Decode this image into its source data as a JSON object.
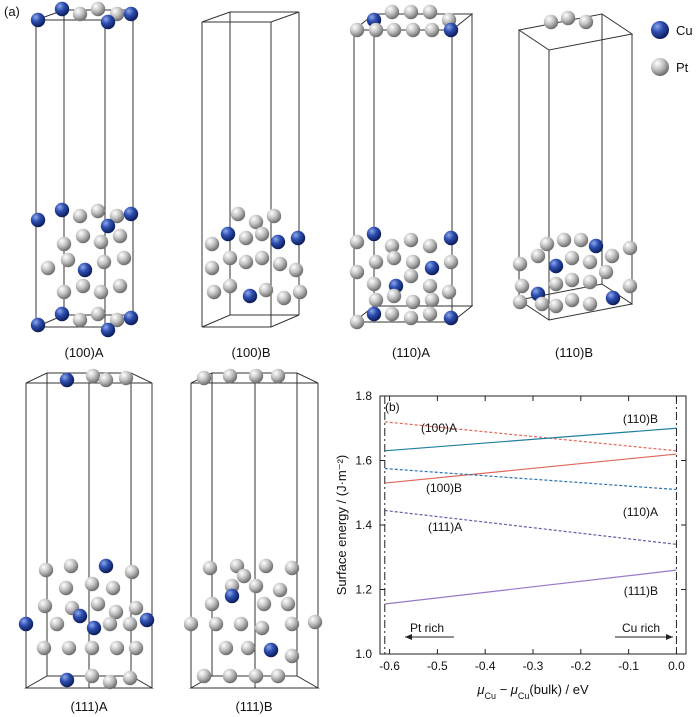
{
  "figure": {
    "panel_a_label": "(a)",
    "panel_b_label": "(b)",
    "legend": {
      "items": [
        {
          "name": "Cu",
          "color": "#2b4aa0"
        },
        {
          "name": "Pt",
          "color": "#a9a9a9"
        }
      ]
    },
    "structures": [
      {
        "label": "(100)A"
      },
      {
        "label": "(100)B"
      },
      {
        "label": "(110)A"
      },
      {
        "label": "(110)B"
      },
      {
        "label": "(111)A"
      },
      {
        "label": "(111)B"
      }
    ]
  },
  "chart_data": {
    "type": "line",
    "xlabel_main": "μ",
    "xlabel_sub1": "Cu",
    "xlabel_mid": " − μ",
    "xlabel_sub2": "Cu",
    "xlabel_tail": "(bulk) / eV",
    "ylabel": "Surface energy / (J·m⁻²)",
    "xlim": [
      -0.62,
      0.02
    ],
    "ylim": [
      1.0,
      1.8
    ],
    "xticks": [
      -0.6,
      -0.5,
      -0.4,
      -0.3,
      -0.2,
      -0.1,
      0.0
    ],
    "xtick_labels": [
      "-0.6",
      "-0.5",
      "-0.4",
      "-0.3",
      "-0.2",
      "-0.1",
      "0.0"
    ],
    "yticks": [
      1.0,
      1.2,
      1.4,
      1.6,
      1.8
    ],
    "ytick_labels": [
      "1.0",
      "1.2",
      "1.4",
      "1.6",
      "1.8"
    ],
    "x_range": [
      -0.61,
      0.0
    ],
    "series": [
      {
        "name": "(100)A",
        "values": [
          1.72,
          1.63
        ],
        "color": "#e0685a",
        "dashed": true
      },
      {
        "name": "(100)B",
        "values": [
          1.53,
          1.62
        ],
        "color": "#e0685a",
        "dashed": false
      },
      {
        "name": "(110)A",
        "values": [
          1.575,
          1.51
        ],
        "color": "#2a73b0",
        "dashed": true
      },
      {
        "name": "(110)B",
        "values": [
          1.63,
          1.7
        ],
        "color": "#1f7fa0",
        "dashed": false
      },
      {
        "name": "(111)A",
        "values": [
          1.445,
          1.34
        ],
        "color": "#6a5aa8",
        "dashed": true
      },
      {
        "name": "(111)B",
        "values": [
          1.155,
          1.26
        ],
        "color": "#9a78c8",
        "dashed": false
      }
    ],
    "annotations": {
      "pt_rich": "Pt rich",
      "cu_rich": "Cu rich"
    }
  }
}
